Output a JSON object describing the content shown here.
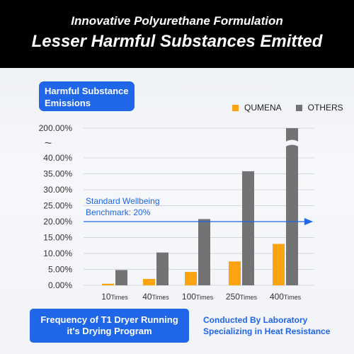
{
  "header": {
    "line1": "Innovative Polyurethane Formulation",
    "line2": "Lesser Harmful Substances Emitted"
  },
  "title_box": {
    "line1": "Harmful Substance",
    "line2": "Emissions"
  },
  "benchmark": {
    "line1": "Standard Wellbeing",
    "line2": "Benchmark: 20%",
    "value": 20
  },
  "footer": {
    "left_line1": "Frequency of T1 Dryer Running",
    "left_line2": "it's Drying Program",
    "right_line1": "Conducted By Laboratory",
    "right_line2": "Specializing in Heat Resistance"
  },
  "colors": {
    "qumena": "#fca311",
    "others": "#737373",
    "accent": "#1f66e8"
  },
  "chart_data": {
    "type": "bar",
    "categories": [
      "10",
      "40",
      "100",
      "250",
      "400"
    ],
    "category_suffix": "Times",
    "series": [
      {
        "name": "QUMENA",
        "values": [
          0.5,
          2.0,
          4.2,
          7.5,
          13.0
        ]
      },
      {
        "name": "OTHERS",
        "values": [
          4.8,
          10.3,
          20.8,
          35.8,
          200.0
        ]
      }
    ],
    "y_ticks": [
      "0.00%",
      "5.00%",
      "10.00%",
      "15.00%",
      "20.00%",
      "25.00%",
      "30.00%",
      "35.00%",
      "40.00%",
      "200.00%"
    ],
    "ylim": [
      0,
      40
    ],
    "axis_break": true,
    "break_symbol": "~",
    "grid": true,
    "legend_position": "top-right"
  }
}
